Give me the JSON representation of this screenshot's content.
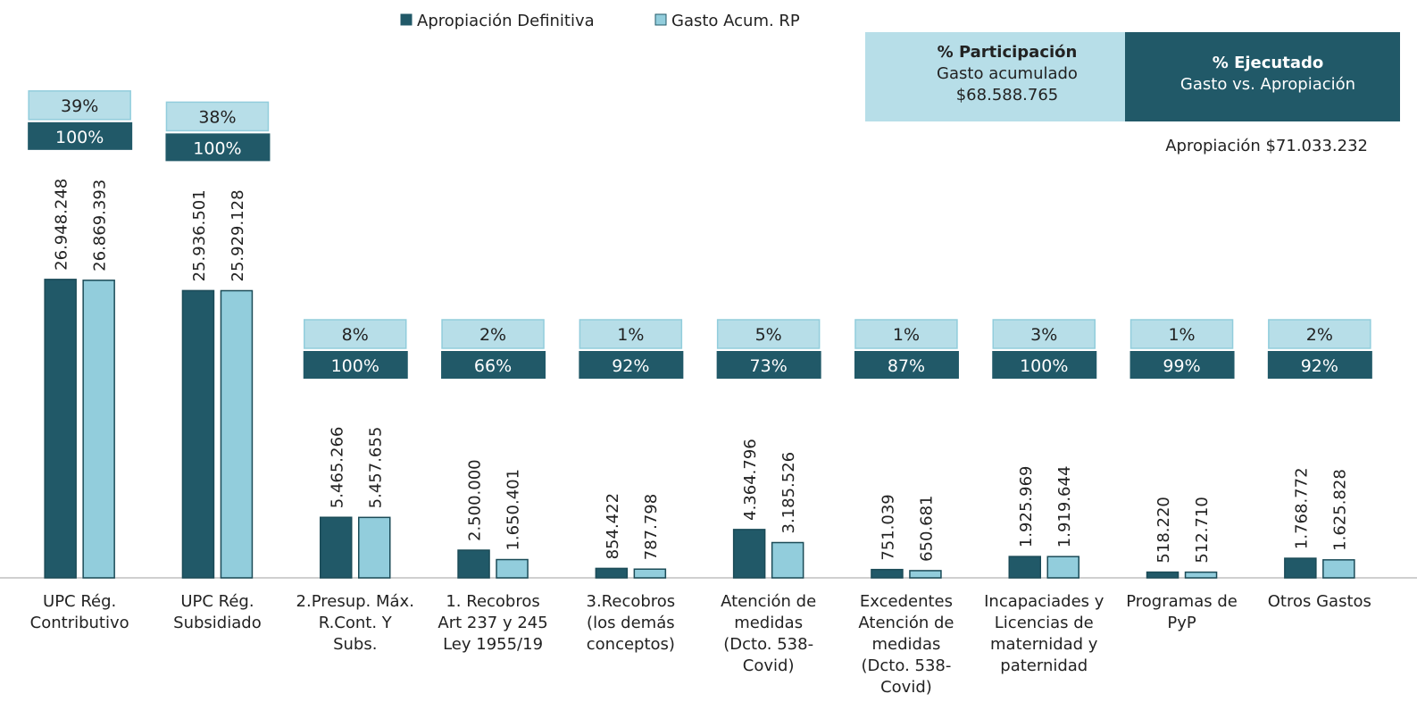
{
  "chart_data": {
    "type": "bar",
    "categories": [
      [
        "UPC Rég.",
        "Contributivo"
      ],
      [
        "UPC Rég.",
        "Subsidiado"
      ],
      [
        "2.Presup. Máx.",
        "R.Cont. Y",
        "Subs."
      ],
      [
        "1. Recobros",
        "Art 237 y 245",
        "Ley 1955/19"
      ],
      [
        "3.Recobros",
        "(los demás",
        "conceptos)"
      ],
      [
        "Atención de",
        "medidas",
        "(Dcto. 538-",
        "Covid)"
      ],
      [
        "Excedentes",
        "Atención de",
        "medidas",
        "(Dcto. 538-",
        "Covid)"
      ],
      [
        "Incapaciades y",
        "Licencias de",
        "maternidad y",
        "paternidad"
      ],
      [
        "Programas de",
        "PyP"
      ],
      [
        "Otros Gastos"
      ]
    ],
    "series": [
      {
        "name": "Apropiación Definitiva",
        "color": "#215968",
        "values": [
          26948248,
          25936501,
          5465266,
          2500000,
          854422,
          4364796,
          751039,
          1925969,
          518220,
          1768772
        ],
        "value_labels": [
          "26.948.248",
          "25.936.501",
          "5.465.266",
          "2.500.000",
          "854.422",
          "4.364.796",
          "751.039",
          "1.925.969",
          "518.220",
          "1.768.772"
        ]
      },
      {
        "name": "Gasto Acum. RP",
        "color": "#92cddc",
        "values": [
          26869393,
          25929128,
          5457655,
          1650401,
          787798,
          3185526,
          650681,
          1919644,
          512710,
          1625828
        ],
        "value_labels": [
          "26.869.393",
          "25.929.128",
          "5.457.655",
          "1.650.401",
          "787.798",
          "3.185.526",
          "650.681",
          "1.919.644",
          "512.710",
          "1.625.828"
        ]
      }
    ],
    "participation": {
      "values": [
        39,
        38,
        8,
        2,
        1,
        5,
        1,
        3,
        1,
        2
      ],
      "value_labels": [
        "39%",
        "38%",
        "8%",
        "2%",
        "1%",
        "5%",
        "1%",
        "3%",
        "1%",
        "2%"
      ],
      "color": "#b7dee8"
    },
    "executed": {
      "values": [
        100,
        100,
        100,
        66,
        92,
        73,
        87,
        100,
        99,
        92
      ],
      "value_labels": [
        "100%",
        "100%",
        "100%",
        "66%",
        "92%",
        "73%",
        "87%",
        "100%",
        "99%",
        "92%"
      ],
      "color": "#215968"
    },
    "key": {
      "participation_title": "% Participación",
      "participation_sub": "Gasto acumulado",
      "participation_total": "$68.588.765",
      "executed_title": "% Ejecutado",
      "executed_sub": "Gasto vs. Apropiación"
    },
    "note": "Apropiación $71.033.232",
    "ylim": [
      0,
      50000000
    ]
  }
}
